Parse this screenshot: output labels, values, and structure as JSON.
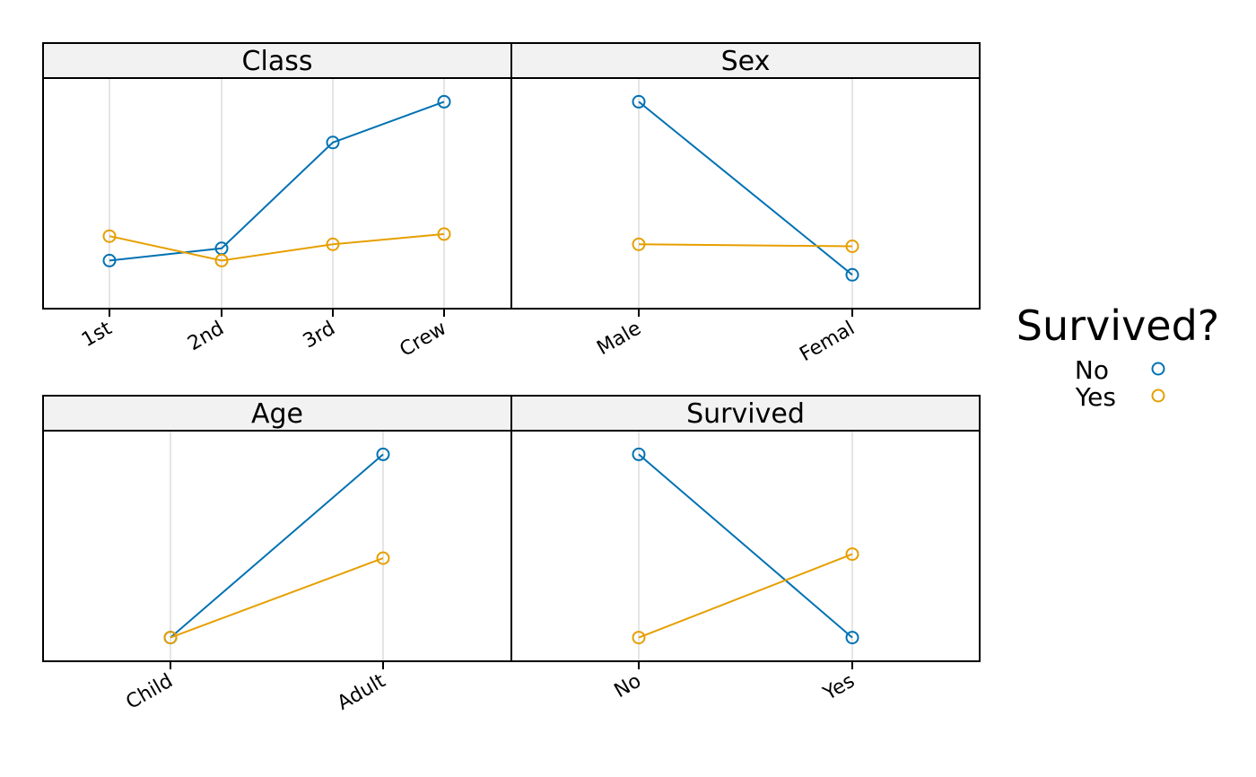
{
  "legend": {
    "title": "Survived?",
    "entries": [
      {
        "label": "No",
        "color": "#0072B2"
      },
      {
        "label": "Yes",
        "color": "#E69F00"
      }
    ]
  },
  "colors": {
    "strip_bg": "#F2F2F2",
    "gridline": "#E5E5E5",
    "frame": "#000000"
  },
  "chart_data": [
    {
      "type": "line",
      "title": "Class",
      "categories": [
        "1st",
        "2nd",
        "3rd",
        "Crew"
      ],
      "ylim": [
        0,
        1
      ],
      "grid": "vertical",
      "series": [
        {
          "name": "No",
          "values": [
            0.17,
            0.23,
            0.75,
            0.95
          ]
        },
        {
          "name": "Yes",
          "values": [
            0.29,
            0.17,
            0.25,
            0.3
          ]
        }
      ]
    },
    {
      "type": "line",
      "title": "Sex",
      "categories": [
        "Male",
        "Femal"
      ],
      "ylim": [
        0,
        1
      ],
      "grid": "vertical",
      "series": [
        {
          "name": "No",
          "values": [
            0.95,
            0.1
          ]
        },
        {
          "name": "Yes",
          "values": [
            0.25,
            0.24
          ]
        }
      ]
    },
    {
      "type": "line",
      "title": "Age",
      "categories": [
        "Child",
        "Adult"
      ],
      "ylim": [
        0,
        1
      ],
      "grid": "vertical",
      "series": [
        {
          "name": "No",
          "values": [
            0.05,
            0.95
          ]
        },
        {
          "name": "Yes",
          "values": [
            0.05,
            0.44
          ]
        }
      ]
    },
    {
      "type": "line",
      "title": "Survived",
      "categories": [
        "No",
        "Yes"
      ],
      "ylim": [
        0,
        1
      ],
      "grid": "vertical",
      "series": [
        {
          "name": "No",
          "values": [
            0.95,
            0.05
          ]
        },
        {
          "name": "Yes",
          "values": [
            0.05,
            0.46
          ]
        }
      ]
    }
  ]
}
